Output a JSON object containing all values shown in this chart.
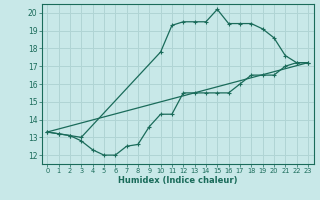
{
  "xlabel": "Humidex (Indice chaleur)",
  "bg_color": "#c8e8e8",
  "line_color": "#1a6b5a",
  "grid_color": "#b0d4d4",
  "xlim": [
    -0.5,
    23.5
  ],
  "ylim": [
    11.5,
    20.5
  ],
  "xticks": [
    0,
    1,
    2,
    3,
    4,
    5,
    6,
    7,
    8,
    9,
    10,
    11,
    12,
    13,
    14,
    15,
    16,
    17,
    18,
    19,
    20,
    21,
    22,
    23
  ],
  "yticks": [
    12,
    13,
    14,
    15,
    16,
    17,
    18,
    19,
    20
  ],
  "line1_x": [
    0,
    1,
    2,
    3,
    10,
    11,
    12,
    13,
    14,
    15,
    16,
    17,
    18,
    19,
    20,
    21,
    22,
    23
  ],
  "line1_y": [
    13.3,
    13.2,
    13.1,
    13.0,
    17.8,
    19.3,
    19.5,
    19.5,
    19.5,
    20.2,
    19.4,
    19.4,
    19.4,
    19.1,
    18.6,
    17.6,
    17.2,
    17.2
  ],
  "line2_x": [
    0,
    1,
    2,
    3,
    4,
    5,
    6,
    7,
    8,
    9,
    10,
    11,
    12,
    13,
    14,
    15,
    16,
    17,
    18,
    19,
    20,
    21,
    22,
    23
  ],
  "line2_y": [
    13.3,
    13.2,
    13.1,
    12.8,
    12.3,
    12.0,
    12.0,
    12.5,
    12.6,
    13.6,
    14.3,
    14.3,
    15.5,
    15.5,
    15.5,
    15.5,
    15.5,
    16.0,
    16.5,
    16.5,
    16.5,
    17.0,
    17.2,
    17.2
  ],
  "line3_x": [
    0,
    23
  ],
  "line3_y": [
    13.3,
    17.2
  ],
  "marker": "+"
}
